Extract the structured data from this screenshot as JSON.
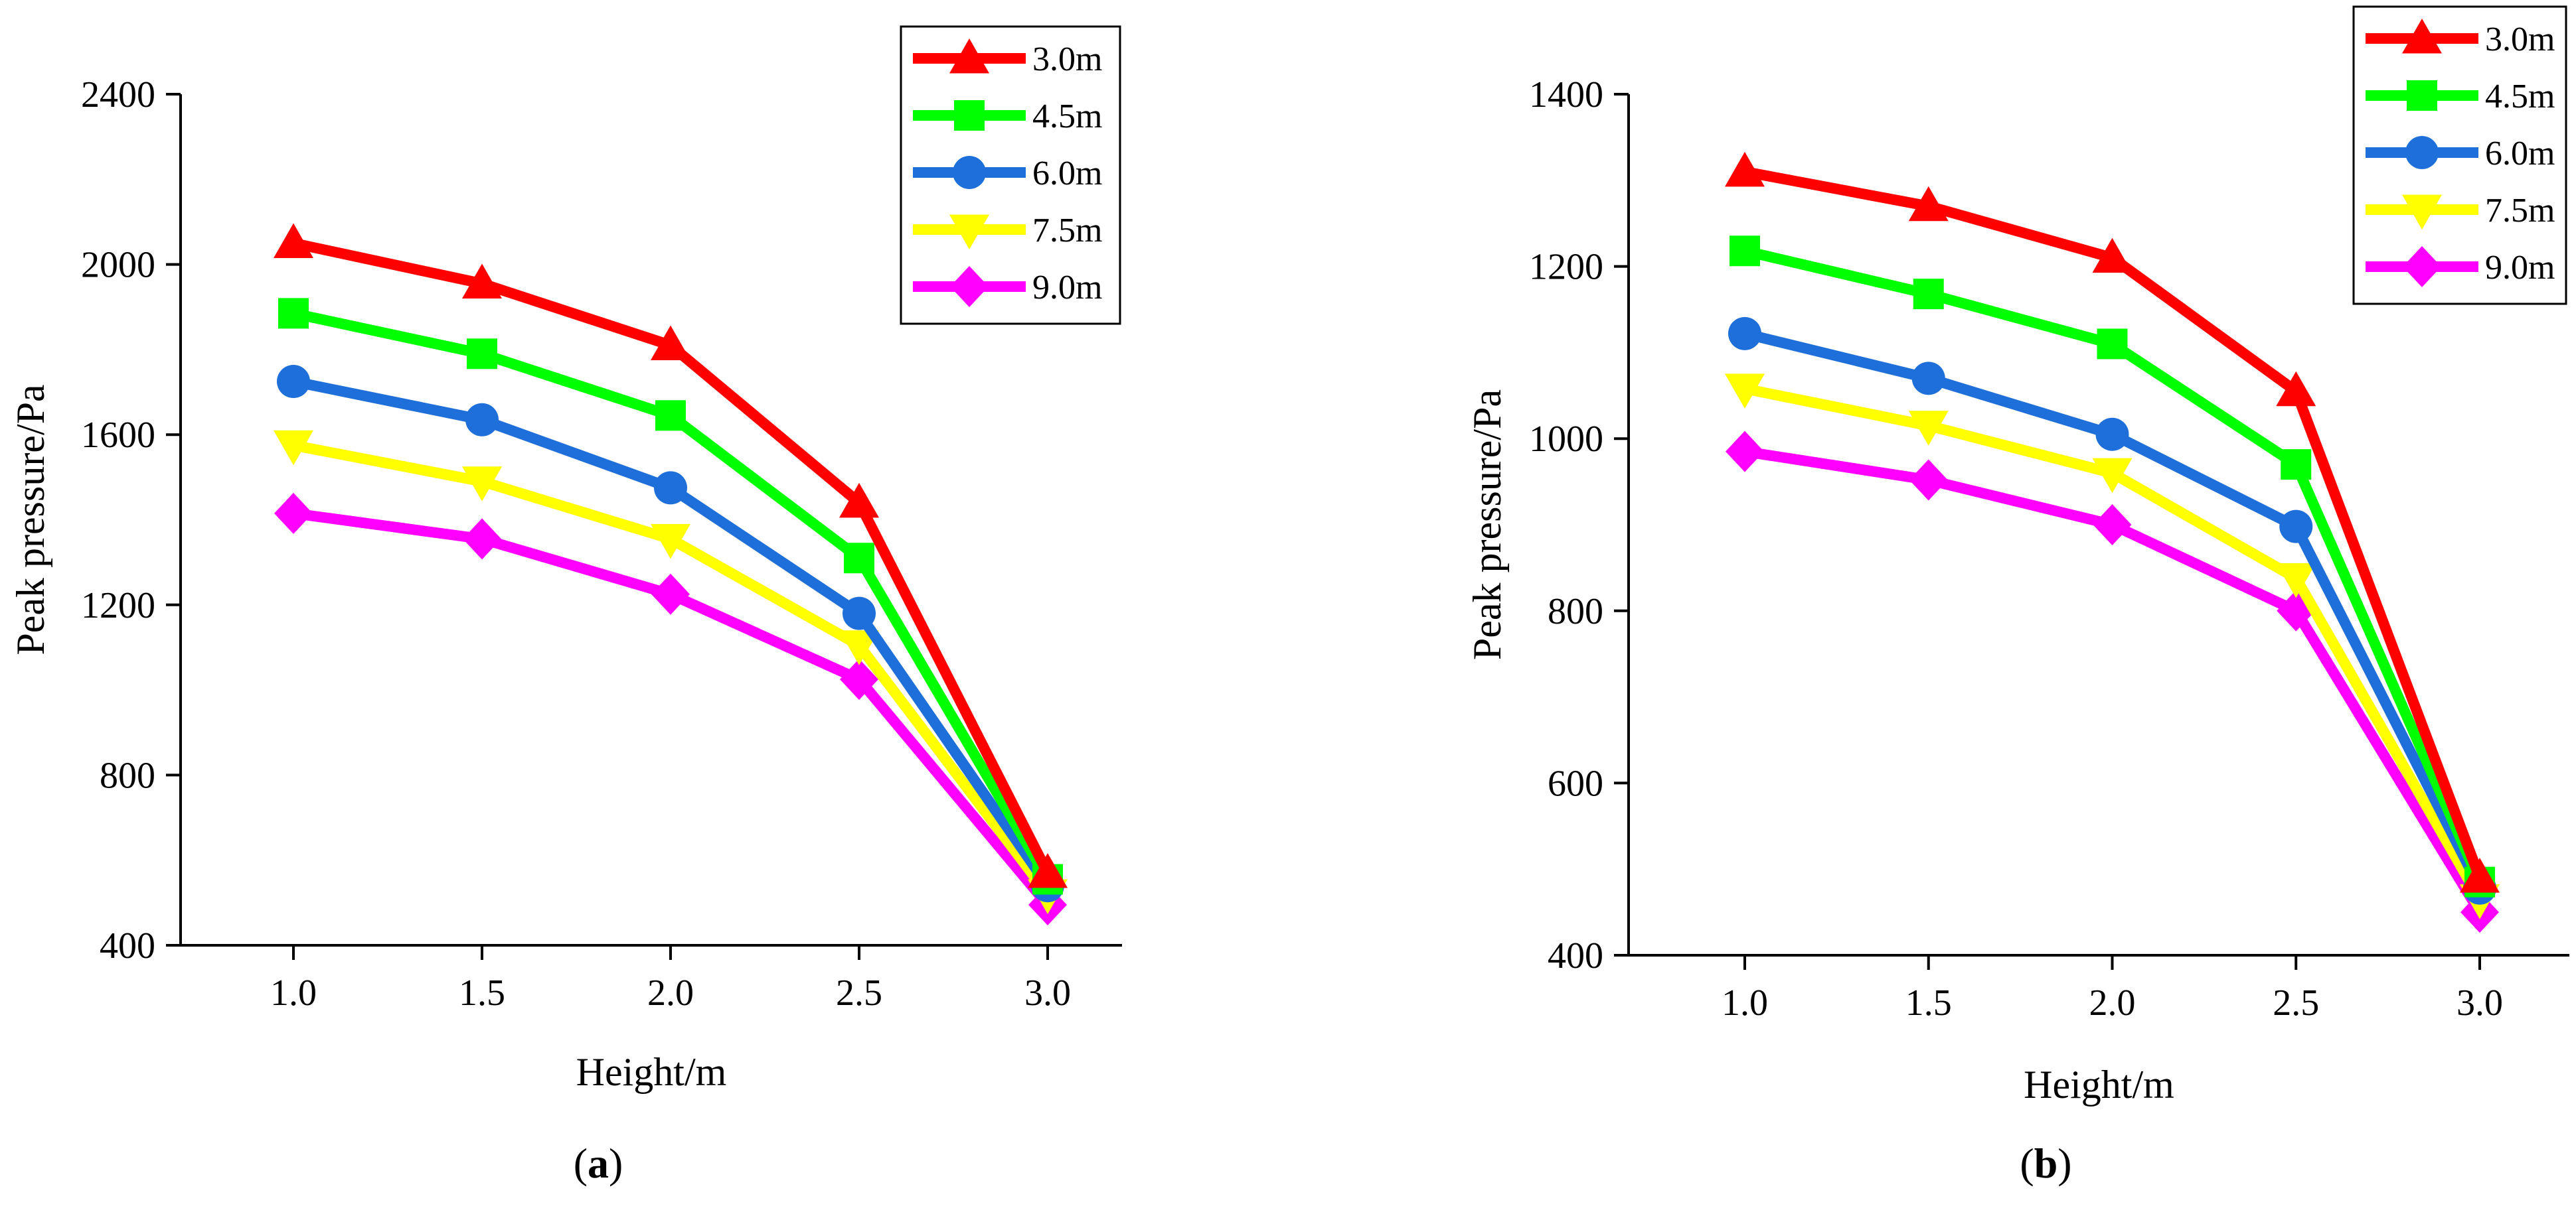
{
  "chart_data": [
    {
      "type": "line",
      "panel": "(a)",
      "panel_letter": "a",
      "xlabel": "Height/m",
      "ylabel": "Peak pressure/Pa",
      "x": [
        1.0,
        1.5,
        2.0,
        2.5,
        3.0
      ],
      "x_tick_labels": [
        "1.0",
        "1.5",
        "2.0",
        "2.5",
        "3.0"
      ],
      "ylim": [
        400,
        2400
      ],
      "y_ticks": [
        400,
        800,
        1200,
        1600,
        2000,
        2400
      ],
      "legend_position": "top-right",
      "series": [
        {
          "name": "3.0m",
          "color": "#ff0000",
          "marker": "triangle-up",
          "values": [
            2050,
            1955,
            1810,
            1440,
            570
          ]
        },
        {
          "name": "4.5m",
          "color": "#00ff00",
          "marker": "square",
          "values": [
            1885,
            1790,
            1645,
            1310,
            555
          ]
        },
        {
          "name": "6.0m",
          "color": "#1e6fd9",
          "marker": "circle",
          "values": [
            1725,
            1635,
            1475,
            1180,
            540
          ]
        },
        {
          "name": "7.5m",
          "color": "#ffff00",
          "marker": "triangle-down",
          "values": [
            1575,
            1490,
            1355,
            1105,
            520
          ]
        },
        {
          "name": "9.0m",
          "color": "#ff00ff",
          "marker": "diamond",
          "values": [
            1415,
            1355,
            1225,
            1025,
            495
          ]
        }
      ]
    },
    {
      "type": "line",
      "panel": "(b)",
      "panel_letter": "b",
      "xlabel": "Height/m",
      "ylabel": "Peak pressure/Pa",
      "x": [
        1.0,
        1.5,
        2.0,
        2.5,
        3.0
      ],
      "x_tick_labels": [
        "1.0",
        "1.5",
        "2.0",
        "2.5",
        "3.0"
      ],
      "ylim": [
        400,
        1400
      ],
      "y_ticks": [
        400,
        600,
        800,
        1000,
        1200,
        1400
      ],
      "legend_position": "top-right",
      "series": [
        {
          "name": "3.0m",
          "color": "#ff0000",
          "marker": "triangle-up",
          "values": [
            1310,
            1270,
            1210,
            1055,
            490
          ]
        },
        {
          "name": "4.5m",
          "color": "#00ff00",
          "marker": "square",
          "values": [
            1218,
            1168,
            1110,
            970,
            485
          ]
        },
        {
          "name": "6.0m",
          "color": "#1e6fd9",
          "marker": "circle",
          "values": [
            1122,
            1070,
            1005,
            898,
            478
          ]
        },
        {
          "name": "7.5m",
          "color": "#ffff00",
          "marker": "triangle-down",
          "values": [
            1058,
            1015,
            960,
            838,
            465
          ]
        },
        {
          "name": "9.0m",
          "color": "#ff00ff",
          "marker": "diamond",
          "values": [
            985,
            952,
            900,
            800,
            450
          ]
        }
      ]
    }
  ]
}
